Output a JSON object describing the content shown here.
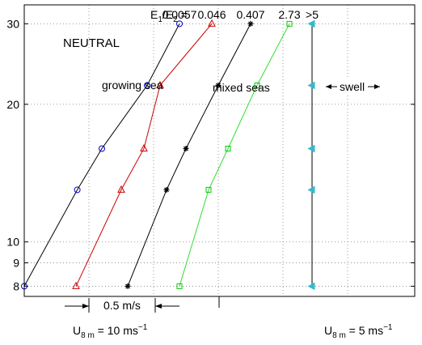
{
  "chart_data": {
    "type": "line",
    "title": "",
    "xlabel": "",
    "ylabel": "",
    "y_scale": "log",
    "ylim": [
      7.6,
      33
    ],
    "y_ticks": [
      8,
      9,
      10,
      20,
      30
    ],
    "x_tick_count": 6,
    "grid": true,
    "grid_style": "dotted",
    "y": [
      8,
      13,
      16,
      22,
      30
    ],
    "series": [
      {
        "name": "",
        "ratio_label": "0.0057",
        "color": "#0000cc",
        "line_color": "#000000",
        "marker": "circle",
        "x": [
          0.0,
          0.82,
          1.2,
          1.9,
          2.4
        ]
      },
      {
        "name": "",
        "ratio_label": "0.046",
        "color": "#cc0000",
        "line_color": "#cc0000",
        "marker": "triangle",
        "x": [
          0.8,
          1.5,
          1.85,
          2.1,
          2.9
        ]
      },
      {
        "name": "",
        "ratio_label": "0.407",
        "color": "#000000",
        "line_color": "#000000",
        "marker": "star",
        "x": [
          1.6,
          2.2,
          2.5,
          3.0,
          3.5
        ]
      },
      {
        "name": "",
        "ratio_label": "2.73",
        "color": "#00cc00",
        "line_color": "#33dd33",
        "marker": "square",
        "x": [
          2.4,
          2.85,
          3.15,
          3.6,
          4.1
        ]
      },
      {
        "name": "",
        "ratio_label": ">5",
        "color": "#33bbcc",
        "line_color": "#000000",
        "marker": "left-triangle",
        "x": [
          4.45,
          4.45,
          4.45,
          4.45,
          4.45
        ]
      }
    ],
    "annotations": {
      "condition": "NEUTRAL",
      "ratio_header": "E1/E2 = ",
      "growing": "growing sea",
      "mixed": "mixed seas",
      "swell": "swell",
      "scale_bar": "0.5 m/s",
      "left_ref": "U8 m = 10 ms−1",
      "right_ref": "U8 m = 5 ms−1"
    }
  }
}
